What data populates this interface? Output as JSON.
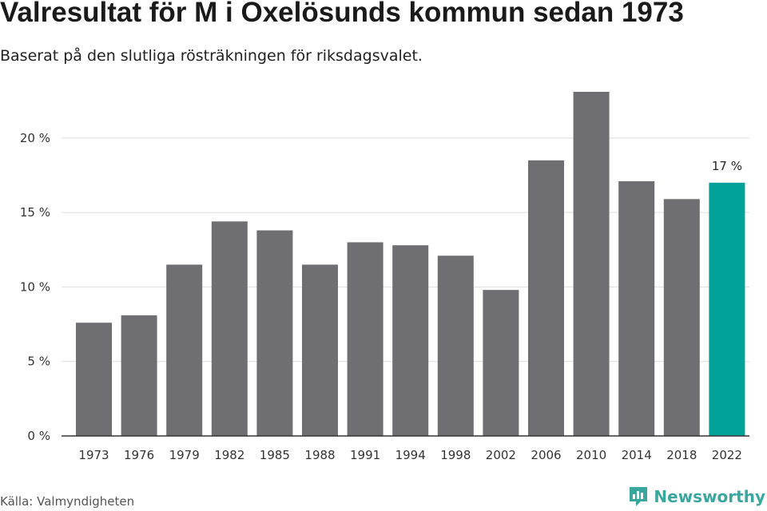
{
  "header": {
    "title": "Valresultat för M i Oxelösunds kommun sedan 1973",
    "subtitle": "Baserat på den slutliga rösträkningen för riksdagsvalet."
  },
  "footer": {
    "source": "Källa: Valmyndigheten",
    "brand": "Newsworthy",
    "brand_icon": "newsworthy-logo-icon"
  },
  "colors": {
    "bar": "#6f6e73",
    "highlight": "#00a29a",
    "grid": "#dddddd",
    "axis": "#333333",
    "brand": "#3aa79e"
  },
  "chart_data": {
    "type": "bar",
    "categories": [
      "1973",
      "1976",
      "1979",
      "1982",
      "1985",
      "1988",
      "1991",
      "1994",
      "1998",
      "2002",
      "2006",
      "2010",
      "2014",
      "2018",
      "2022"
    ],
    "values": [
      7.6,
      8.1,
      11.5,
      14.4,
      13.8,
      11.5,
      13.0,
      12.8,
      12.1,
      9.8,
      18.5,
      23.1,
      17.1,
      15.9,
      17.0
    ],
    "highlight_index": 14,
    "highlight_label": "17 %",
    "ylim": [
      0,
      23.1
    ],
    "yticks": [
      0,
      5,
      10,
      15,
      20
    ],
    "ytick_labels": [
      "0 %",
      "5 %",
      "10 %",
      "15 %",
      "20 %"
    ],
    "grid": true,
    "title": "Valresultat för M i Oxelösunds kommun sedan 1973",
    "xlabel": "",
    "ylabel": ""
  }
}
